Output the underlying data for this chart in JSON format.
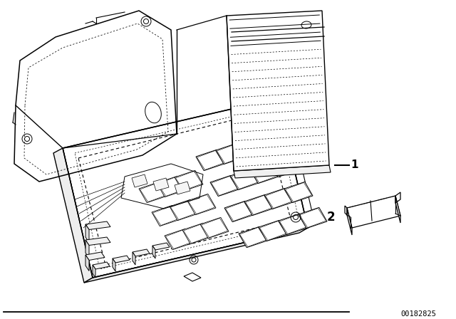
{
  "background_color": "#ffffff",
  "line_color": "#000000",
  "label_1": "-1",
  "label_2": "2",
  "watermark": "00182825",
  "fig_width": 6.4,
  "fig_height": 4.48,
  "dpi": 100
}
